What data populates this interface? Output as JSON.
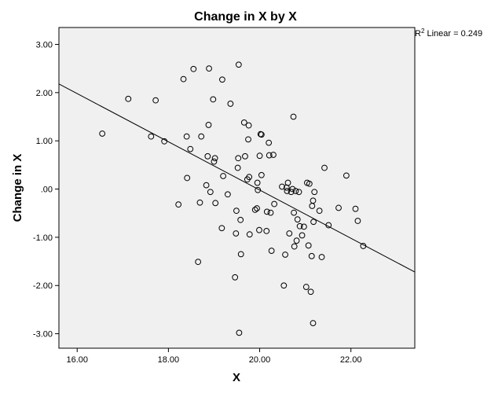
{
  "chart_data": {
    "type": "scatter",
    "title": "Change in X by X",
    "xlabel": "X",
    "ylabel": "Change in X",
    "xlim": [
      15.6,
      23.4
    ],
    "ylim": [
      -3.3,
      3.35
    ],
    "xticks": [
      16,
      18,
      20,
      22
    ],
    "xtick_labels": [
      "16.00",
      "18.00",
      "20.00",
      "22.00"
    ],
    "yticks": [
      3,
      2,
      1,
      0,
      -1,
      -2,
      -3
    ],
    "ytick_labels": [
      "3.00",
      "2.00",
      "1.00",
      ".00",
      "-1.00",
      "-2.00",
      "-3.00"
    ],
    "grid": false,
    "background": "#f0f0f0",
    "fit_line": {
      "label_prefix": "R",
      "label_sup": "2",
      "label_suffix": " Linear = 0.249",
      "x": [
        15.6,
        23.4
      ],
      "y": [
        2.18,
        -1.72
      ]
    },
    "points": [
      [
        16.55,
        1.15
      ],
      [
        17.12,
        1.87
      ],
      [
        17.62,
        1.09
      ],
      [
        17.72,
        1.84
      ],
      [
        17.91,
        0.99
      ],
      [
        18.22,
        -0.32
      ],
      [
        18.33,
        2.28
      ],
      [
        18.4,
        1.09
      ],
      [
        18.41,
        0.23
      ],
      [
        18.48,
        0.83
      ],
      [
        18.55,
        2.49
      ],
      [
        18.65,
        -1.51
      ],
      [
        18.69,
        -0.28
      ],
      [
        18.72,
        1.09
      ],
      [
        18.83,
        0.08
      ],
      [
        18.86,
        0.68
      ],
      [
        18.88,
        1.33
      ],
      [
        18.89,
        2.5
      ],
      [
        18.92,
        -0.06
      ],
      [
        18.98,
        1.86
      ],
      [
        19.0,
        0.57
      ],
      [
        19.02,
        0.64
      ],
      [
        19.03,
        -0.29
      ],
      [
        19.17,
        -0.81
      ],
      [
        19.18,
        2.27
      ],
      [
        19.2,
        0.27
      ],
      [
        19.3,
        -0.11
      ],
      [
        19.36,
        1.77
      ],
      [
        19.46,
        -1.83
      ],
      [
        19.48,
        -0.92
      ],
      [
        19.49,
        -0.45
      ],
      [
        19.52,
        0.44
      ],
      [
        19.53,
        0.64
      ],
      [
        19.54,
        2.58
      ],
      [
        19.55,
        -2.98
      ],
      [
        19.58,
        -0.64
      ],
      [
        19.59,
        -1.35
      ],
      [
        19.66,
        1.38
      ],
      [
        19.68,
        0.68
      ],
      [
        19.73,
        0.2
      ],
      [
        19.75,
        1.03
      ],
      [
        19.76,
        1.32
      ],
      [
        19.77,
        0.25
      ],
      [
        19.78,
        -0.94
      ],
      [
        19.9,
        -0.43
      ],
      [
        19.94,
        -0.4
      ],
      [
        19.95,
        0.13
      ],
      [
        19.96,
        -0.02
      ],
      [
        19.99,
        -0.85
      ],
      [
        20.0,
        0.69
      ],
      [
        20.02,
        1.14
      ],
      [
        20.04,
        1.13
      ],
      [
        20.04,
        0.29
      ],
      [
        20.15,
        -0.87
      ],
      [
        20.16,
        -0.47
      ],
      [
        20.2,
        0.96
      ],
      [
        20.21,
        0.7
      ],
      [
        20.24,
        -0.49
      ],
      [
        20.26,
        -1.28
      ],
      [
        20.3,
        0.71
      ],
      [
        20.32,
        -0.31
      ],
      [
        20.49,
        0.05
      ],
      [
        20.53,
        -2.0
      ],
      [
        20.56,
        -1.36
      ],
      [
        20.59,
        0.03
      ],
      [
        20.6,
        -0.04
      ],
      [
        20.62,
        0.13
      ],
      [
        20.65,
        -0.92
      ],
      [
        20.69,
        -0.06
      ],
      [
        20.72,
        0.0
      ],
      [
        20.74,
        1.5
      ],
      [
        20.75,
        -0.49
      ],
      [
        20.76,
        -1.19
      ],
      [
        20.79,
        -0.04
      ],
      [
        20.81,
        -1.07
      ],
      [
        20.83,
        -0.63
      ],
      [
        20.86,
        -0.06
      ],
      [
        20.88,
        -0.77
      ],
      [
        20.93,
        -0.96
      ],
      [
        20.97,
        -0.78
      ],
      [
        21.02,
        -2.03
      ],
      [
        21.04,
        0.13
      ],
      [
        21.07,
        -1.17
      ],
      [
        21.09,
        0.11
      ],
      [
        21.12,
        -2.13
      ],
      [
        21.14,
        -1.39
      ],
      [
        21.15,
        -0.35
      ],
      [
        21.17,
        -0.24
      ],
      [
        21.17,
        -2.78
      ],
      [
        21.18,
        -0.68
      ],
      [
        21.2,
        -0.06
      ],
      [
        21.31,
        -0.45
      ],
      [
        21.36,
        -1.41
      ],
      [
        21.42,
        0.44
      ],
      [
        21.51,
        -0.75
      ],
      [
        21.73,
        -0.39
      ],
      [
        21.9,
        0.28
      ],
      [
        22.1,
        -0.41
      ],
      [
        22.15,
        -0.66
      ],
      [
        22.27,
        -1.18
      ]
    ]
  }
}
